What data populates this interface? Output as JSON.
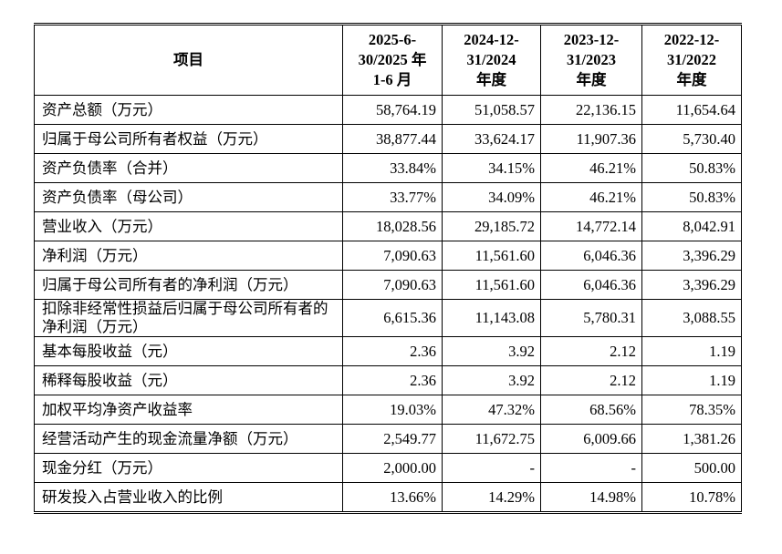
{
  "table": {
    "header": [
      {
        "lines": [
          "项目"
        ]
      },
      {
        "lines": [
          "2025-6-",
          "30/2025 年",
          "1-6 月"
        ]
      },
      {
        "lines": [
          "2024-12-",
          "31/2024",
          "年度"
        ]
      },
      {
        "lines": [
          "2023-12-",
          "31/2023",
          "年度"
        ]
      },
      {
        "lines": [
          "2022-12-",
          "31/2022",
          "年度"
        ]
      }
    ],
    "rows": [
      [
        "资产总额（万元）",
        "58,764.19",
        "51,058.57",
        "22,136.15",
        "11,654.64"
      ],
      [
        "归属于母公司所有者权益（万元）",
        "38,877.44",
        "33,624.17",
        "11,907.36",
        "5,730.40"
      ],
      [
        "资产负债率（合并）",
        "33.84%",
        "34.15%",
        "46.21%",
        "50.83%"
      ],
      [
        "资产负债率（母公司）",
        "33.77%",
        "34.09%",
        "46.21%",
        "50.83%"
      ],
      [
        "营业收入（万元）",
        "18,028.56",
        "29,185.72",
        "14,772.14",
        "8,042.91"
      ],
      [
        "净利润（万元）",
        "7,090.63",
        "11,561.60",
        "6,046.36",
        "3,396.29"
      ],
      [
        "归属于母公司所有者的净利润（万元）",
        "7,090.63",
        "11,561.60",
        "6,046.36",
        "3,396.29"
      ],
      [
        "扣除非经常性损益后归属于母公司所有者的净利润（万元）",
        "6,615.36",
        "11,143.08",
        "5,780.31",
        "3,088.55"
      ],
      [
        "基本每股收益（元）",
        "2.36",
        "3.92",
        "2.12",
        "1.19"
      ],
      [
        "稀释每股收益（元）",
        "2.36",
        "3.92",
        "2.12",
        "1.19"
      ],
      [
        "加权平均净资产收益率",
        "19.03%",
        "47.32%",
        "68.56%",
        "78.35%"
      ],
      [
        "经营活动产生的现金流量净额（万元）",
        "2,549.77",
        "11,672.75",
        "6,009.66",
        "1,381.26"
      ],
      [
        "现金分红（万元）",
        "2,000.00",
        "-",
        "-",
        "500.00"
      ],
      [
        "研发投入占营业收入的比例",
        "13.66%",
        "14.29%",
        "14.98%",
        "10.78%"
      ]
    ]
  }
}
